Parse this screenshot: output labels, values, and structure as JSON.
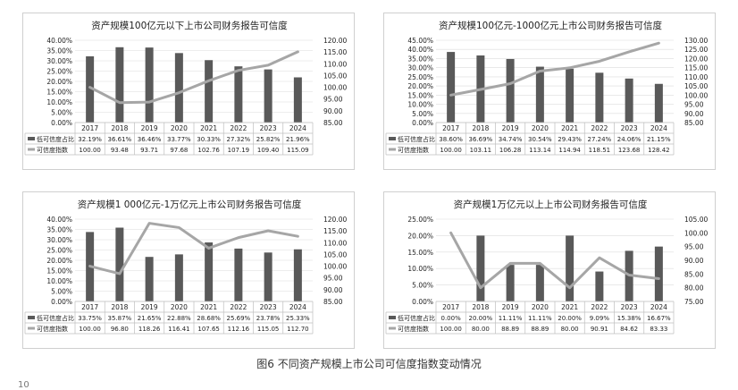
{
  "figure_caption": "图6 不同资产规模上市公司可信度指数变动情况",
  "page_number": "10",
  "colors": {
    "bar": "#595959",
    "line": "#a6a6a6",
    "grid": "#dcdcdc",
    "axis": "#bfbfbf"
  },
  "chart_data": [
    {
      "type": "bar+line",
      "title": "资产规模100亿元以下上市公司财务报告可信度",
      "categories": [
        "2017",
        "2018",
        "2019",
        "2020",
        "2021",
        "2022",
        "2023",
        "2024"
      ],
      "left_ticks": [
        "40.00%",
        "35.00%",
        "30.00%",
        "25.00%",
        "20.00%",
        "15.00%",
        "10.00%",
        "5.00%",
        "0.00%"
      ],
      "right_ticks": [
        "120.00",
        "115.00",
        "110.00",
        "105.00",
        "100.00",
        "95.00",
        "90.00",
        "85.00"
      ],
      "ylim_left": [
        0,
        40
      ],
      "ylim_right": [
        85,
        120
      ],
      "series": [
        {
          "name": "低可信度占比",
          "kind": "bar",
          "axis": "left",
          "values": [
            32.19,
            36.61,
            36.46,
            33.77,
            30.33,
            27.32,
            25.82,
            21.96
          ],
          "labels": [
            "32.19%",
            "36.61%",
            "36.46%",
            "33.77%",
            "30.33%",
            "27.32%",
            "25.82%",
            "21.96%"
          ]
        },
        {
          "name": "可信度指数",
          "kind": "line",
          "axis": "right",
          "values": [
            100.0,
            93.48,
            93.71,
            97.68,
            102.76,
            107.19,
            109.4,
            115.09
          ],
          "labels": [
            "100.00",
            "93.48",
            "93.71",
            "97.68",
            "102.76",
            "107.19",
            "109.40",
            "115.09"
          ]
        }
      ]
    },
    {
      "type": "bar+line",
      "title": "资产规模100亿元-1000亿元上市公司财务报告可信度",
      "categories": [
        "2017",
        "2018",
        "2019",
        "2020",
        "2021",
        "2022",
        "2023",
        "2024"
      ],
      "left_ticks": [
        "45.00%",
        "40.00%",
        "35.00%",
        "30.00%",
        "25.00%",
        "20.00%",
        "15.00%",
        "10.00%",
        "5.00%",
        "0.00%"
      ],
      "right_ticks": [
        "130.00",
        "125.00",
        "120.00",
        "115.00",
        "110.00",
        "105.00",
        "100.00",
        "95.00",
        "90.00",
        "85.00"
      ],
      "ylim_left": [
        0,
        45
      ],
      "ylim_right": [
        85,
        130
      ],
      "series": [
        {
          "name": "低可信度占比",
          "kind": "bar",
          "axis": "left",
          "values": [
            38.6,
            36.69,
            34.74,
            30.54,
            29.43,
            27.24,
            24.06,
            21.15
          ],
          "labels": [
            "38.60%",
            "36.69%",
            "34.74%",
            "30.54%",
            "29.43%",
            "27.24%",
            "24.06%",
            "21.15%"
          ]
        },
        {
          "name": "可信度指数",
          "kind": "line",
          "axis": "right",
          "values": [
            100.0,
            103.11,
            106.28,
            113.14,
            114.94,
            118.51,
            123.68,
            128.42
          ],
          "labels": [
            "100.00",
            "103.11",
            "106.28",
            "113.14",
            "114.94",
            "118.51",
            "123.68",
            "128.42"
          ]
        }
      ]
    },
    {
      "type": "bar+line",
      "title": "资产规模1 000亿元-1万亿元上市公司财务报告可信度",
      "categories": [
        "2017",
        "2018",
        "2019",
        "2020",
        "2021",
        "2022",
        "2023",
        "2024"
      ],
      "left_ticks": [
        "40.00%",
        "35.00%",
        "30.00%",
        "25.00%",
        "20.00%",
        "15.00%",
        "10.00%",
        "5.00%",
        "0.00%"
      ],
      "right_ticks": [
        "120.00",
        "115.00",
        "110.00",
        "105.00",
        "100.00",
        "95.00",
        "90.00",
        "85.00"
      ],
      "ylim_left": [
        0,
        40
      ],
      "ylim_right": [
        85,
        120
      ],
      "series": [
        {
          "name": "低可信度占比",
          "kind": "bar",
          "axis": "left",
          "values": [
            33.75,
            35.87,
            21.65,
            22.88,
            28.68,
            25.69,
            23.78,
            25.33
          ],
          "labels": [
            "33.75%",
            "35.87%",
            "21.65%",
            "22.88%",
            "28.68%",
            "25.69%",
            "23.78%",
            "25.33%"
          ]
        },
        {
          "name": "可信度指数",
          "kind": "line",
          "axis": "right",
          "values": [
            100.0,
            96.8,
            118.26,
            116.41,
            107.65,
            112.16,
            115.05,
            112.7
          ],
          "labels": [
            "100.00",
            "96.80",
            "118.26",
            "116.41",
            "107.65",
            "112.16",
            "115.05",
            "112.70"
          ]
        }
      ]
    },
    {
      "type": "bar+line",
      "title": "资产规模1万亿元以上上市公司财务报告可信度",
      "categories": [
        "2017",
        "2018",
        "2019",
        "2020",
        "2021",
        "2022",
        "2023",
        "2024"
      ],
      "left_ticks": [
        "25.00%",
        "20.00%",
        "15.00%",
        "10.00%",
        "5.00%",
        "0.00%"
      ],
      "right_ticks": [
        "105.00",
        "100.00",
        "95.00",
        "90.00",
        "85.00",
        "80.00",
        "75.00"
      ],
      "ylim_left": [
        0,
        25
      ],
      "ylim_right": [
        75,
        105
      ],
      "series": [
        {
          "name": "低可信度占比",
          "kind": "bar",
          "axis": "left",
          "values": [
            0.0,
            20.0,
            11.11,
            11.11,
            20.0,
            9.09,
            15.38,
            16.67
          ],
          "labels": [
            "0.00%",
            "20.00%",
            "11.11%",
            "11.11%",
            "20.00%",
            "9.09%",
            "15.38%",
            "16.67%"
          ]
        },
        {
          "name": "可信度指数",
          "kind": "line",
          "axis": "right",
          "values": [
            100.0,
            80.0,
            88.89,
            88.89,
            80.0,
            90.91,
            84.62,
            83.33
          ],
          "labels": [
            "100.00",
            "80.00",
            "88.89",
            "88.89",
            "80.00",
            "90.91",
            "84.62",
            "83.33"
          ]
        }
      ]
    }
  ]
}
